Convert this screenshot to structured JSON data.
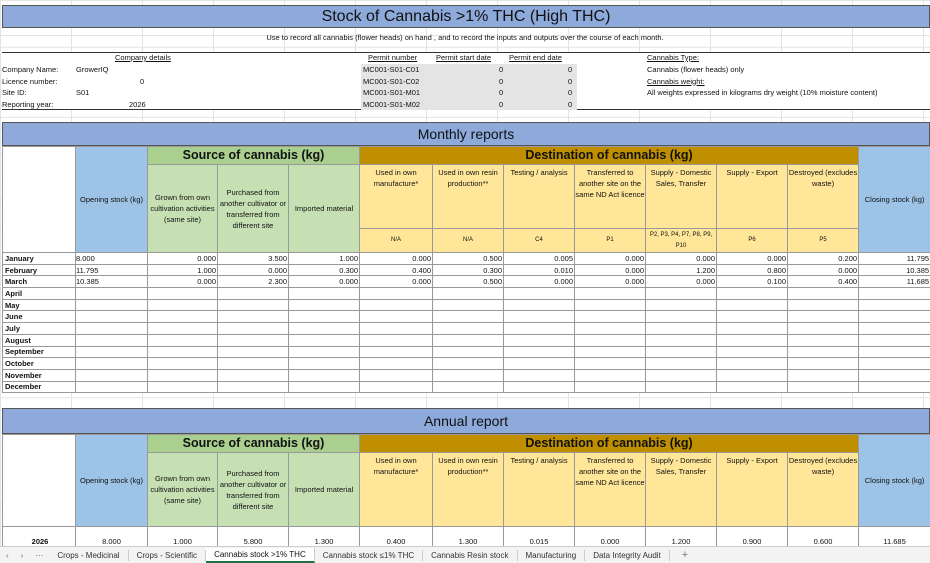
{
  "title": "Stock of Cannabis >1% THC (High THC)",
  "instructions": "Use to record all cannabis (flower heads) on hand , and to record the inputs and outputs over the course of each month.",
  "company": {
    "heading": "Company details",
    "fields": [
      {
        "label": "Company Name:",
        "value": "GrowerIQ"
      },
      {
        "label": "Licence number:",
        "value": "0"
      },
      {
        "label": "Site ID:",
        "value": "S01"
      },
      {
        "label": "Reporting year:",
        "value": "2026"
      }
    ]
  },
  "permits": {
    "headers": [
      "Permit number",
      "Permit start date",
      "Permit end date"
    ],
    "rows": [
      [
        "MC001-S01-C01",
        "0",
        "0"
      ],
      [
        "MC001-S01-C02",
        "0",
        "0"
      ],
      [
        "MC001-S01-M01",
        "0",
        "0"
      ],
      [
        "MC001-S01-M02",
        "0",
        "0"
      ]
    ]
  },
  "cannabis_info": {
    "type_label": "Cannabis Type:",
    "type_value": "Cannabis (flower heads) only",
    "weight_label": "Cannabis weight:",
    "weight_value": "All weights expressed in kilograms dry weight (10% moisture content)"
  },
  "monthly_title": "Monthly reports",
  "annual_title": "Annual report",
  "headers": {
    "opening": "Opening stock (kg)",
    "source_group": "Source of cannabis (kg)",
    "dest_group": "Destination of cannabis (kg)",
    "closing": "Closing stock (kg)",
    "source": [
      "Grown from own cultivation activities (same site)",
      "Purchased from another cultivator or transferred from different site",
      "Imported material"
    ],
    "dest": [
      "Used in own manufacture*",
      "Used in own resin production**",
      "Testing / analysis",
      "Transferred to another site on the same ND Act licence",
      "Supply - Domestic Sales, Transfer",
      "Supply - Export",
      "Destroyed (excludes waste)"
    ],
    "codes": [
      "N/A",
      "N/A",
      "C4",
      "P1",
      "P2, P3, P4, P7, P8, P9, P10",
      "P6",
      "P5"
    ]
  },
  "monthly_rows": [
    {
      "month": "January",
      "values": [
        "8.000",
        "0.000",
        "3.500",
        "1.000",
        "0.000",
        "0.500",
        "0.005",
        "0.000",
        "0.000",
        "0.000",
        "0.200",
        "11.795"
      ]
    },
    {
      "month": "February",
      "values": [
        "11.795",
        "1.000",
        "0.000",
        "0.300",
        "0.400",
        "0.300",
        "0.010",
        "0.000",
        "1.200",
        "0.800",
        "0.000",
        "10.385"
      ]
    },
    {
      "month": "March",
      "values": [
        "10.385",
        "0.000",
        "2.300",
        "0.000",
        "0.000",
        "0.500",
        "0.000",
        "0.000",
        "0.000",
        "0.100",
        "0.400",
        "11.685"
      ]
    },
    {
      "month": "April",
      "values": []
    },
    {
      "month": "May",
      "values": []
    },
    {
      "month": "June",
      "values": []
    },
    {
      "month": "July",
      "values": []
    },
    {
      "month": "August",
      "values": []
    },
    {
      "month": "September",
      "values": []
    },
    {
      "month": "October",
      "values": []
    },
    {
      "month": "November",
      "values": []
    },
    {
      "month": "December",
      "values": []
    }
  ],
  "annual_row": {
    "year": "2026",
    "values": [
      "8.000",
      "1.000",
      "5.800",
      "1.300",
      "0.400",
      "1.300",
      "0.015",
      "0.000",
      "1.200",
      "0.900",
      "0.600",
      "11.685"
    ]
  },
  "sheet_tabs": [
    "Crops - Medicinal",
    "Crops - Scientific",
    "Cannabis stock >1% THC",
    "Cannabis stock ≤1% THC",
    "Cannabis Resin stock",
    "Manufacturing",
    "Data Integrity Audit"
  ],
  "active_tab": "Cannabis stock >1% THC",
  "colors": {
    "band": "#8eaadb",
    "source": "#c6e0b4",
    "dest_head": "#bf8f00",
    "dest": "#ffe699",
    "stock": "#9dc3e6"
  }
}
